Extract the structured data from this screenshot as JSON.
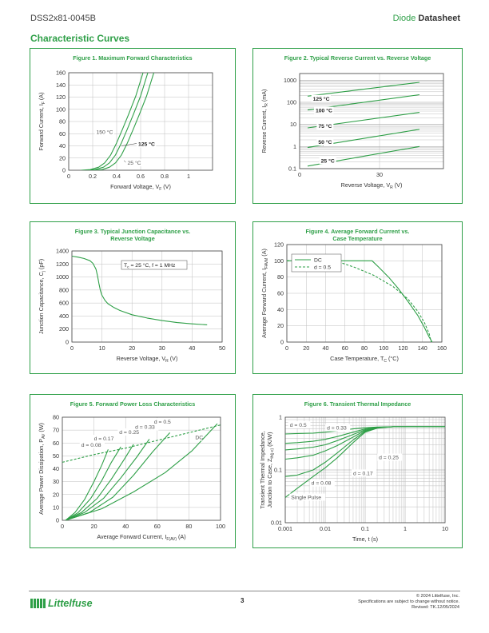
{
  "header": {
    "part_number": "DSS2x81-0045B",
    "doc_type_prefix": "Diode ",
    "doc_type_bold": "Datasheet"
  },
  "section_title": "Characteristic Curves",
  "footer": {
    "page": "3",
    "copyright": "© 2024 Littelfuse, Inc.",
    "notice": "Specifications are subject to change without notice.",
    "revised": "Revised: TK.12/05/2024",
    "logo_text": "Littelfuse"
  },
  "colors": {
    "green": "#2e9f47",
    "grid": "#bfbfbf",
    "axis": "#444444"
  },
  "chart_data": [
    {
      "id": "fig1",
      "type": "line",
      "title": "Figure 1. Maximum Forward Characteristics",
      "xlabel": "Forward Voltage, V",
      "xlabel_sub": "F",
      "xlabel_unit": " (V)",
      "ylabel": "Forward Current, I",
      "ylabel_sub": "F",
      "ylabel_unit": " (A)",
      "xlim": [
        0,
        1.2
      ],
      "ylim": [
        0,
        160
      ],
      "xscale": "linear",
      "yscale": "linear",
      "xticks": [
        0,
        0.2,
        0.4,
        0.6,
        0.8,
        1
      ],
      "xtick_labels": [
        "0",
        "0.2",
        "0.4",
        "0.6",
        "0.8",
        "1"
      ],
      "yticks": [
        0,
        20,
        40,
        60,
        80,
        100,
        120,
        140,
        160
      ],
      "ytick_labels": [
        "0",
        "20",
        "40",
        "60",
        "80",
        "100",
        "120",
        "140",
        "160"
      ],
      "grid": true,
      "series": [
        {
          "name": "150 °C",
          "x": [
            0.1,
            0.18,
            0.25,
            0.3,
            0.35,
            0.4,
            0.45,
            0.5,
            0.56,
            0.62
          ],
          "y": [
            0,
            1,
            5,
            12,
            25,
            45,
            68,
            92,
            122,
            160
          ]
        },
        {
          "name": "125 °C",
          "x": [
            0.14,
            0.22,
            0.29,
            0.34,
            0.39,
            0.44,
            0.49,
            0.54,
            0.6,
            0.66
          ],
          "y": [
            0,
            1,
            5,
            12,
            25,
            45,
            68,
            92,
            122,
            160
          ]
        },
        {
          "name": "25 °C",
          "x": [
            0.2,
            0.28,
            0.34,
            0.39,
            0.44,
            0.49,
            0.54,
            0.59,
            0.65,
            0.71
          ],
          "y": [
            0,
            1,
            5,
            12,
            25,
            45,
            68,
            92,
            122,
            160
          ]
        }
      ],
      "annotations": [
        {
          "text": "150 °C",
          "x": 0.23,
          "y": 60,
          "bold": false,
          "arrow_to": null
        },
        {
          "text": "125 °C",
          "x": 0.58,
          "y": 40,
          "bold": true,
          "arrow_to": [
            0.44,
            40
          ]
        },
        {
          "text": "25 °C",
          "x": 0.49,
          "y": 9,
          "bold": false,
          "arrow_to": [
            0.46,
            16
          ]
        }
      ]
    },
    {
      "id": "fig2",
      "type": "line",
      "title": "Figure 2. Typical Reverse Current vs. Reverse Voltage",
      "xlabel": "Reverse Voltage, V",
      "xlabel_sub": "R",
      "xlabel_unit": " (V)",
      "ylabel": "Reverse Current, I",
      "ylabel_sub": "R",
      "ylabel_unit": " (mA)",
      "xlim": [
        0,
        54
      ],
      "ylim": [
        0.1,
        2000
      ],
      "xscale": "linear",
      "yscale": "log",
      "xticks": [
        0,
        30
      ],
      "xtick_labels": [
        "0",
        "30"
      ],
      "yticks": [
        0.1,
        1,
        10,
        100,
        1000
      ],
      "ytick_labels": [
        "0.1",
        "1",
        "10",
        "100",
        "1000"
      ],
      "grid": true,
      "series": [
        {
          "name": "125 °C",
          "x": [
            3,
            45
          ],
          "y": [
            190,
            800
          ]
        },
        {
          "name": "100 °C",
          "x": [
            3,
            45
          ],
          "y": [
            45,
            220
          ]
        },
        {
          "name": "75 °C",
          "x": [
            3,
            45
          ],
          "y": [
            7,
            35
          ]
        },
        {
          "name": "50 °C",
          "x": [
            3,
            45
          ],
          "y": [
            0.9,
            6
          ]
        },
        {
          "name": "25 °C",
          "x": [
            3,
            45
          ],
          "y": [
            0.13,
            1
          ]
        }
      ],
      "annotations": [
        {
          "text": "125 °C",
          "x": 5,
          "y": 120,
          "bold": true,
          "arrow_to": [
            6,
            200
          ]
        },
        {
          "text": "100 °C",
          "x": 6,
          "y": 35,
          "bold": true,
          "arrow_to": [
            7,
            50
          ]
        },
        {
          "text": "75 °C",
          "x": 7,
          "y": 7,
          "bold": true,
          "arrow_to": [
            8,
            8
          ]
        },
        {
          "text": "50 °C",
          "x": 7,
          "y": 1.3,
          "bold": true,
          "arrow_to": [
            9,
            1.05
          ]
        },
        {
          "text": "25 °C",
          "x": 8,
          "y": 0.19,
          "bold": true,
          "arrow_to": [
            10,
            0.17
          ]
        }
      ]
    },
    {
      "id": "fig3",
      "type": "line",
      "title": "Figure 3. Typical Junction Capacitance vs.",
      "title2": "Reverse Voltage",
      "xlabel": "Reverse Voltage, V",
      "xlabel_sub": "R",
      "xlabel_unit": " (V)",
      "ylabel": "Junction Capacitance, C",
      "ylabel_sub": "j",
      "ylabel_unit": " (pF)",
      "xlim": [
        0,
        50
      ],
      "ylim": [
        0,
        1400
      ],
      "xscale": "linear",
      "yscale": "linear",
      "xticks": [
        0,
        10,
        20,
        30,
        40,
        50
      ],
      "xtick_labels": [
        "0",
        "10",
        "20",
        "30",
        "40",
        "50"
      ],
      "yticks": [
        0,
        200,
        400,
        600,
        800,
        1000,
        1200,
        1400
      ],
      "ytick_labels": [
        "0",
        "200",
        "400",
        "600",
        "800",
        "1000",
        "1200",
        "1400"
      ],
      "grid": true,
      "series": [
        {
          "name": "",
          "x": [
            0,
            2,
            4,
            6,
            7,
            8,
            8.5,
            9,
            9.5,
            10,
            11,
            12,
            14,
            16,
            20,
            25,
            30,
            35,
            40,
            45
          ],
          "y": [
            1320,
            1305,
            1285,
            1250,
            1210,
            1120,
            1020,
            900,
            790,
            720,
            640,
            590,
            530,
            485,
            420,
            370,
            330,
            300,
            280,
            265
          ]
        }
      ],
      "legend_box": {
        "text": "T",
        "sub": "c",
        "rest": " = 25 °C, f = 1 MHz"
      }
    },
    {
      "id": "fig4",
      "type": "line",
      "title": "Figure 4. Average Forward Current vs.",
      "title2": "Case Temperature",
      "xlabel": "Case Temperature, T",
      "xlabel_sub": "C",
      "xlabel_unit": " (°C)",
      "ylabel": "Average Forward Current, I",
      "ylabel_sub": "FAVM",
      "ylabel_unit": " (A)",
      "xlim": [
        0,
        160
      ],
      "ylim": [
        0,
        120
      ],
      "xscale": "linear",
      "yscale": "linear",
      "xticks": [
        0,
        20,
        40,
        60,
        80,
        100,
        120,
        140,
        160
      ],
      "xtick_labels": [
        "0",
        "20",
        "40",
        "60",
        "80",
        "100",
        "120",
        "140",
        "160"
      ],
      "yticks": [
        0,
        20,
        40,
        60,
        80,
        100,
        120
      ],
      "ytick_labels": [
        "0",
        "20",
        "40",
        "60",
        "80",
        "100",
        "120"
      ],
      "grid": true,
      "series": [
        {
          "name": "DC",
          "style": "solid",
          "x": [
            0,
            88,
            95,
            105,
            115,
            125,
            135,
            142,
            147,
            150
          ],
          "y": [
            100,
            100,
            92,
            80,
            66,
            50,
            33,
            18,
            6,
            0
          ]
        },
        {
          "name": "d = 0.5",
          "style": "dashed",
          "x": [
            0,
            50,
            70,
            90,
            110,
            125,
            135,
            142,
            147,
            149
          ],
          "y": [
            100,
            100,
            92,
            82,
            68,
            53,
            38,
            24,
            10,
            0
          ]
        }
      ]
    },
    {
      "id": "fig5",
      "type": "line",
      "title": "Figure 5. Forward Power Loss Characteristics",
      "xlabel": "Average Forward Current, I",
      "xlabel_sub": "F(AV)",
      "xlabel_unit": " (A)",
      "ylabel": "Average Power Dissipation, P",
      "ylabel_sub": "AV",
      "ylabel_unit": " (W)",
      "xlim": [
        0,
        100
      ],
      "ylim": [
        0,
        80
      ],
      "xscale": "linear",
      "yscale": "linear",
      "xticks": [
        0,
        20,
        40,
        60,
        80,
        100
      ],
      "xtick_labels": [
        "0",
        "20",
        "40",
        "60",
        "80",
        "100"
      ],
      "yticks": [
        0,
        10,
        20,
        30,
        40,
        50,
        60,
        70,
        80
      ],
      "ytick_labels": [
        "0",
        "10",
        "20",
        "30",
        "40",
        "50",
        "60",
        "70",
        "80"
      ],
      "grid": true,
      "series": [
        {
          "name": "d = 0.08",
          "x": [
            2,
            8,
            14,
            20,
            25,
            29
          ],
          "y": [
            0,
            6,
            16,
            30,
            43,
            55
          ]
        },
        {
          "name": "d = 0.17",
          "x": [
            2,
            10,
            18,
            25,
            31,
            37
          ],
          "y": [
            0,
            6,
            17,
            31,
            45,
            57
          ]
        },
        {
          "name": "d = 0.25",
          "x": [
            2,
            12,
            22,
            31,
            39,
            45
          ],
          "y": [
            0,
            6,
            17,
            32,
            47,
            59
          ]
        },
        {
          "name": "d = 0.33",
          "x": [
            2,
            14,
            26,
            37,
            47,
            55
          ],
          "y": [
            0,
            6,
            17,
            33,
            49,
            63
          ]
        },
        {
          "name": "d = 0.5",
          "x": [
            2,
            17,
            32,
            45,
            57,
            68
          ],
          "y": [
            0,
            6,
            18,
            35,
            53,
            68
          ]
        },
        {
          "name": "DC",
          "x": [
            2,
            25,
            45,
            65,
            82,
            98
          ],
          "y": [
            0,
            9,
            22,
            37,
            54,
            75
          ]
        },
        {
          "name": "envelope",
          "style": "dashed",
          "x": [
            0,
            20,
            40,
            60,
            80,
            100
          ],
          "y": [
            45,
            51,
            56,
            62,
            68,
            74
          ]
        }
      ],
      "annotations": [
        {
          "text": "d = 0.08",
          "x": 12,
          "y": 57
        },
        {
          "text": "d = 0.17",
          "x": 20,
          "y": 62
        },
        {
          "text": "d = 0.25",
          "x": 36,
          "y": 67
        },
        {
          "text": "d = 0.33",
          "x": 46,
          "y": 71
        },
        {
          "text": "d = 0.5",
          "x": 58,
          "y": 75
        },
        {
          "text": "DC",
          "x": 84,
          "y": 63
        }
      ]
    },
    {
      "id": "fig6",
      "type": "line",
      "title": "Figure 6. Transient Thermal Impedance",
      "xlabel": "Time, t (s)",
      "xlabel_sub": "",
      "xlabel_unit": "",
      "ylabel": "Transient Thermal Impedance,",
      "ylabel2": "Junction to Case, Z",
      "ylabel_sub": "th(j-c)",
      "ylabel_unit": " (K/W)",
      "xlim": [
        0.001,
        10
      ],
      "ylim": [
        0.01,
        1
      ],
      "xscale": "log",
      "yscale": "log",
      "xticks": [
        0.001,
        0.01,
        0.1,
        1,
        10
      ],
      "xtick_labels": [
        "0.001",
        "0.01",
        "0.1",
        "1",
        "10"
      ],
      "yticks": [
        0.01,
        0.1,
        1
      ],
      "ytick_labels": [
        "0.01",
        "0.1",
        "1"
      ],
      "grid": true,
      "series": [
        {
          "name": "d = 0.5",
          "x": [
            0.001,
            0.002,
            0.005,
            0.01,
            0.02,
            0.05,
            0.1,
            0.2,
            0.5,
            1,
            10
          ],
          "y": [
            0.48,
            0.49,
            0.5,
            0.52,
            0.55,
            0.6,
            0.63,
            0.65,
            0.66,
            0.66,
            0.66
          ]
        },
        {
          "name": "d = 0.33",
          "x": [
            0.001,
            0.002,
            0.005,
            0.01,
            0.02,
            0.05,
            0.1,
            0.2,
            0.5,
            1,
            10
          ],
          "y": [
            0.32,
            0.33,
            0.35,
            0.38,
            0.43,
            0.52,
            0.6,
            0.64,
            0.66,
            0.66,
            0.66
          ]
        },
        {
          "name": "d = 0.25",
          "x": [
            0.001,
            0.002,
            0.005,
            0.01,
            0.02,
            0.05,
            0.1,
            0.2,
            0.5,
            1,
            10
          ],
          "y": [
            0.24,
            0.25,
            0.27,
            0.3,
            0.36,
            0.47,
            0.58,
            0.64,
            0.66,
            0.66,
            0.66
          ]
        },
        {
          "name": "d = 0.17",
          "x": [
            0.001,
            0.002,
            0.005,
            0.01,
            0.02,
            0.05,
            0.1,
            0.2,
            0.5,
            1,
            10
          ],
          "y": [
            0.16,
            0.17,
            0.19,
            0.23,
            0.29,
            0.42,
            0.56,
            0.63,
            0.66,
            0.66,
            0.66
          ]
        },
        {
          "name": "d = 0.08",
          "x": [
            0.001,
            0.002,
            0.005,
            0.01,
            0.02,
            0.05,
            0.1,
            0.2,
            0.5,
            1,
            10
          ],
          "y": [
            0.075,
            0.08,
            0.1,
            0.14,
            0.21,
            0.37,
            0.54,
            0.63,
            0.66,
            0.66,
            0.66
          ]
        },
        {
          "name": "Single Pulse",
          "x": [
            0.001,
            0.002,
            0.005,
            0.01,
            0.02,
            0.05,
            0.1,
            0.2,
            0.5,
            1,
            10
          ],
          "y": [
            0.03,
            0.045,
            0.075,
            0.11,
            0.17,
            0.33,
            0.52,
            0.62,
            0.66,
            0.66,
            0.66
          ]
        }
      ],
      "annotations": [
        {
          "text": "d = 0.5",
          "x": 0.0013,
          "y": 0.66
        },
        {
          "text": "d = 0.33",
          "x": 0.011,
          "y": 0.58
        },
        {
          "text": "d = 0.25",
          "x": 0.22,
          "y": 0.16
        },
        {
          "text": "d = 0.17",
          "x": 0.05,
          "y": 0.08
        },
        {
          "text": "d = 0.08",
          "x": 0.0045,
          "y": 0.052
        },
        {
          "text": "Single Pulse",
          "x": 0.0014,
          "y": 0.028
        }
      ]
    }
  ]
}
